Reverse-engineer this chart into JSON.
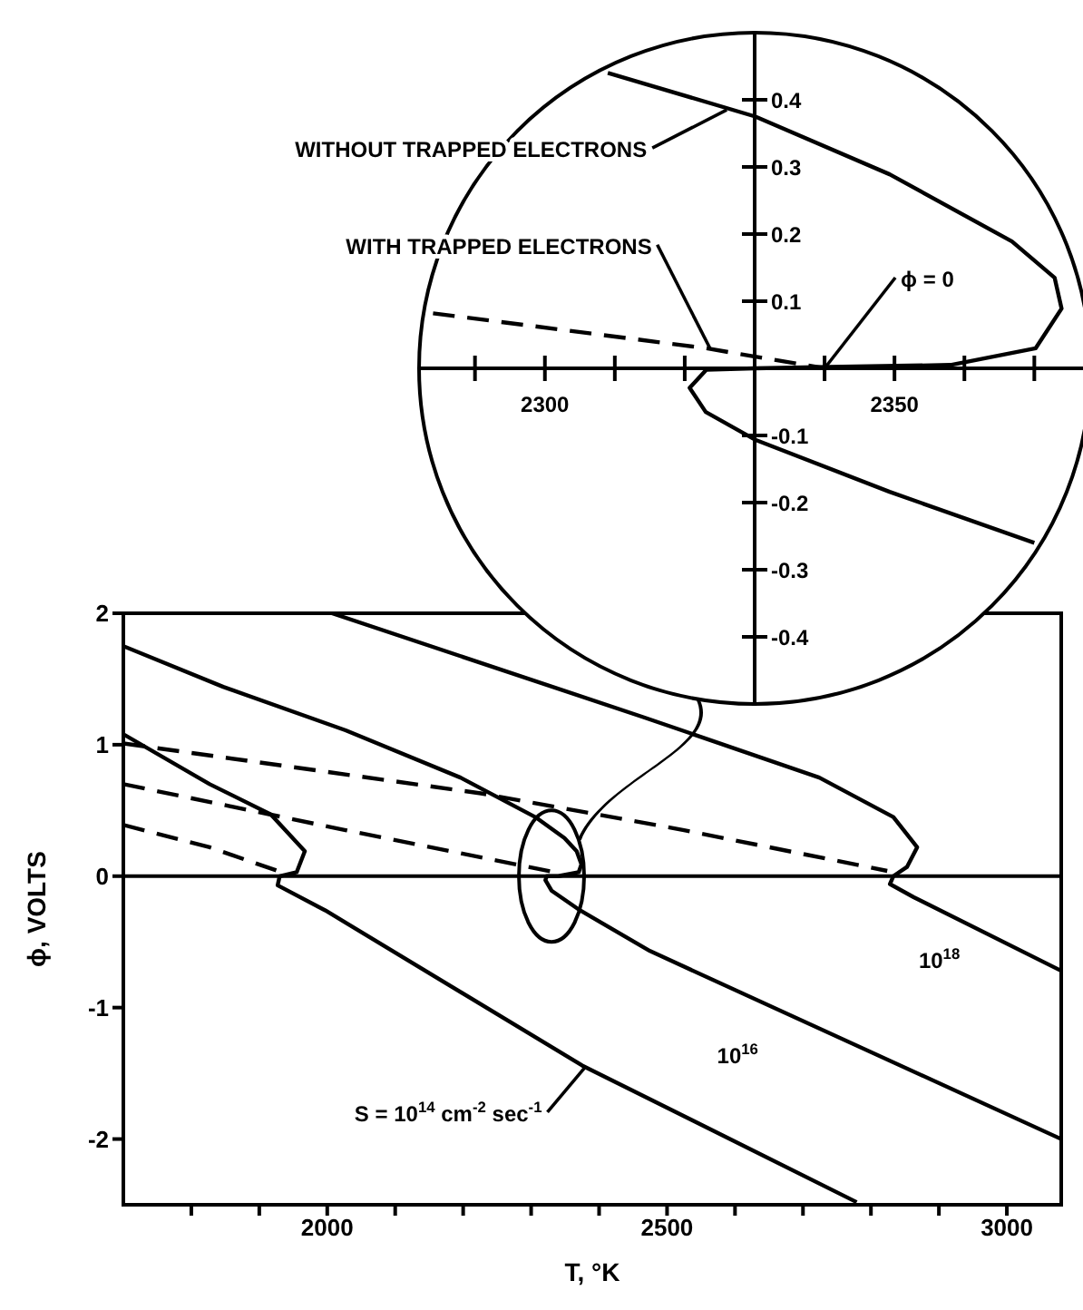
{
  "chart_data": [
    {
      "type": "line",
      "xlabel": "T, °K",
      "ylabel": "ϕ, VOLTS",
      "marker": "none",
      "xlim": [
        1700,
        3080
      ],
      "ylim": [
        -2.5,
        2
      ],
      "xticks": [
        {
          "value": 1800,
          "label": null
        },
        {
          "value": 1900,
          "label": null
        },
        2000,
        {
          "value": 2100,
          "label": null
        },
        {
          "value": 2200,
          "label": null
        },
        {
          "value": 2300,
          "label": null
        },
        {
          "value": 2400,
          "label": null
        },
        2500,
        {
          "value": 2600,
          "label": null
        },
        {
          "value": 2700,
          "label": null
        },
        {
          "value": 2800,
          "label": null
        },
        {
          "value": 2900,
          "label": null
        },
        3000
      ],
      "yticks": [
        -2,
        -1,
        0,
        1,
        2
      ],
      "ref_lines": [
        {
          "axis": "y",
          "value": 0,
          "color": "#000000"
        }
      ],
      "series": [
        {
          "color": "#000000",
          "line_style": "solid",
          "x": [
            1700,
            1827,
            1917,
            1967,
            1955,
            1930,
            1927,
            1997,
            2375,
            2779
          ],
          "values": [
            1.08,
            0.7,
            0.47,
            0.19,
            0.03,
            0.0,
            -0.07,
            -0.26,
            -1.44,
            -2.48
          ]
        },
        {
          "color": "#000000",
          "line_style": "solid",
          "x": [
            1700,
            1847,
            2027,
            2196,
            2306,
            2349,
            2367,
            2374,
            2370,
            2340,
            2323,
            2321,
            2330,
            2372,
            2475,
            3080
          ],
          "values": [
            1.75,
            1.44,
            1.11,
            0.75,
            0.45,
            0.29,
            0.19,
            0.09,
            0.03,
            0.0,
            0.0,
            -0.03,
            -0.11,
            -0.26,
            -0.57,
            -2.0
          ]
        },
        {
          "color": "#000000",
          "line_style": "solid",
          "x": [
            2007,
            2465,
            2724,
            2833,
            2868,
            2853,
            2833,
            2828,
            2863,
            3080
          ],
          "values": [
            2.0,
            1.21,
            0.75,
            0.45,
            0.22,
            0.07,
            0.0,
            -0.06,
            -0.16,
            -0.72
          ]
        },
        {
          "color": "#000000",
          "line_style": "dashed",
          "x": [
            1700,
            2226,
            2525,
            2824
          ],
          "values": [
            1.01,
            0.63,
            0.35,
            0.04
          ]
        },
        {
          "color": "#000000",
          "line_style": "dashed",
          "x": [
            1700,
            2027,
            2335
          ],
          "values": [
            0.7,
            0.35,
            0.03
          ]
        },
        {
          "color": "#000000",
          "line_style": "dashed",
          "x": [
            1700,
            1827,
            1927
          ],
          "values": [
            0.39,
            0.22,
            0.04
          ]
        }
      ],
      "annotations": [
        {
          "text": "S = 10$^{14}$ cm$^{-2}$ sec$^{-1}$",
          "x": 2380,
          "y": -1.45
        },
        "10$^{16}$",
        "10$^{18}$"
      ]
    },
    {
      "type": "line",
      "marker": "none",
      "xlim": [
        2282,
        2378
      ],
      "ylim": [
        -0.5,
        0.5
      ],
      "xticks": [
        {
          "value": 2290,
          "label": null
        },
        2300,
        {
          "value": 2310,
          "label": null
        },
        {
          "value": 2320,
          "label": null
        },
        {
          "value": 2340,
          "label": null
        },
        2350,
        {
          "value": 2360,
          "label": null
        },
        {
          "value": 2370,
          "label": null
        }
      ],
      "yticks": [
        -0.4,
        -0.3,
        -0.2,
        -0.1,
        0.1,
        0.2,
        0.3,
        0.4
      ],
      "series": [
        {
          "color": "#000000",
          "line_style": "solid",
          "x": [
            2309,
            2330.1,
            2349.3,
            2366.8,
            2372.9,
            2373.9,
            2370.2,
            2358,
            2340.6,
            2330,
            2323.1,
            2320.7,
            2323,
            2330,
            2349.3,
            2370
          ],
          "values": [
            0.44,
            0.375,
            0.289,
            0.189,
            0.135,
            0.089,
            0.03,
            0.005,
            0.002,
            0.0,
            -0.002,
            -0.029,
            -0.065,
            -0.106,
            -0.184,
            -0.26
          ]
        },
        {
          "color": "#000000",
          "line_style": "dashed",
          "x": [
            2284,
            2323,
            2340
          ],
          "values": [
            0.082,
            0.03,
            0.0
          ]
        }
      ],
      "annotations": [
        {
          "text": "WITHOUT TRAPPED ELECTRONS",
          "x": 2326,
          "y": 0.385
        },
        {
          "text": "WITH TRAPPED ELECTRONS",
          "x": 2323.6,
          "y": 0.03
        },
        {
          "text": "ϕ = 0",
          "x": 2340,
          "y": 0.0
        }
      ]
    }
  ]
}
